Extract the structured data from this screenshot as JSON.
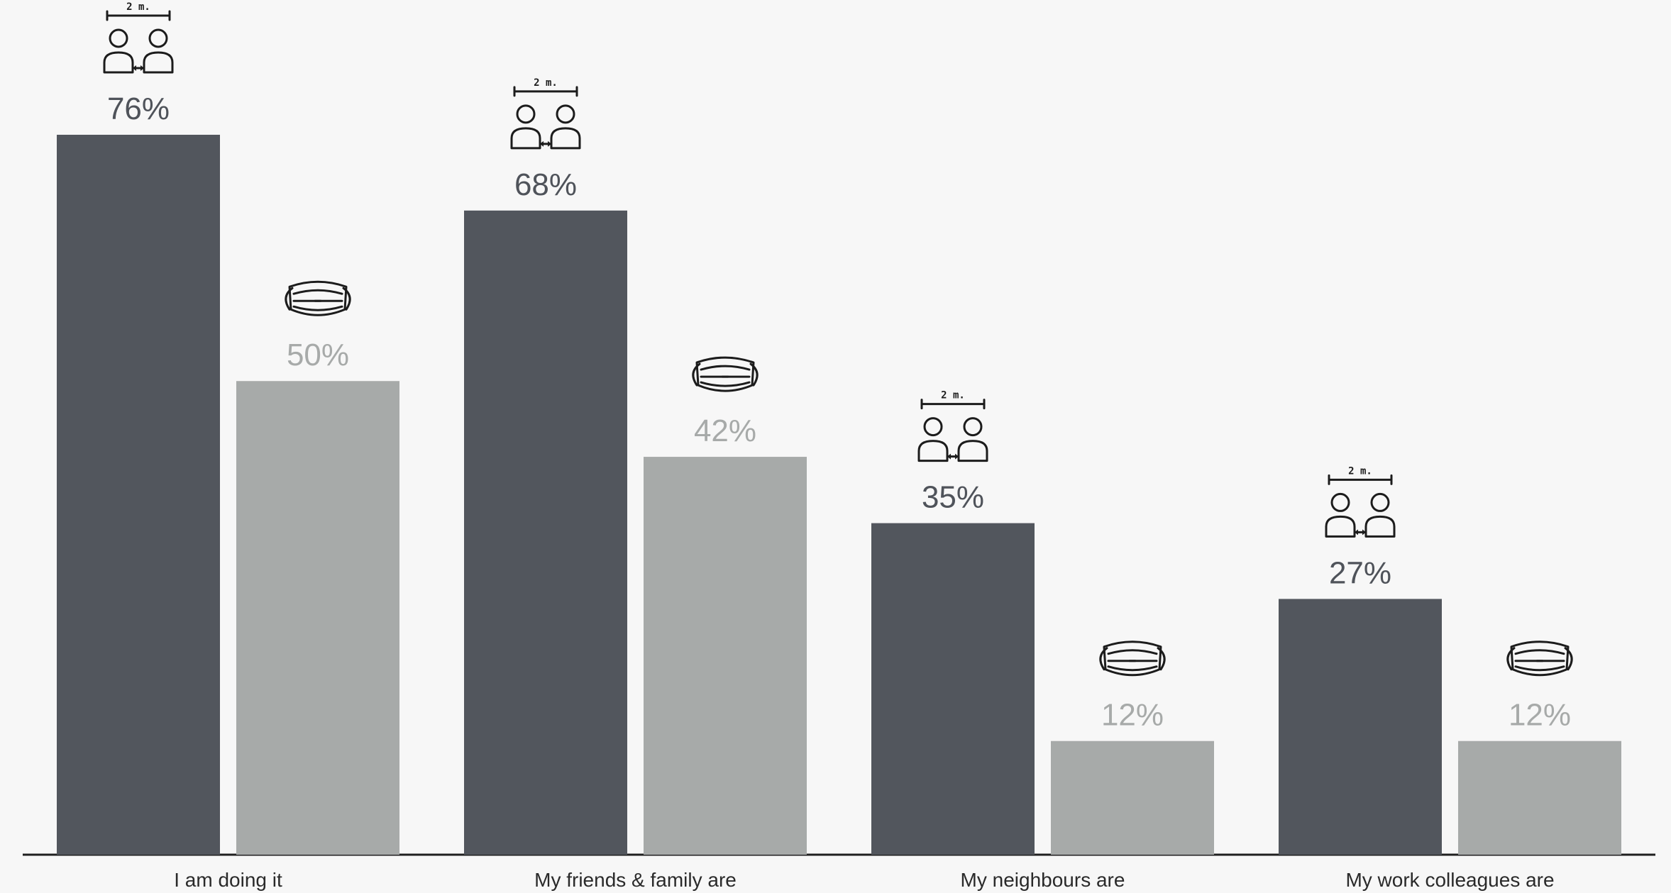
{
  "chart_data": {
    "type": "bar",
    "categories": [
      "I am doing it",
      "My friends & family are",
      "My neighbours are",
      "My work colleagues are"
    ],
    "series": [
      {
        "values": [
          76,
          68,
          35,
          27
        ],
        "color": "#52565d",
        "label_color": "#4f535a",
        "icon": "social-distance-icon",
        "icon_text": "2 m."
      },
      {
        "values": [
          50,
          42,
          12,
          12
        ],
        "color": "#a7aaa9",
        "label_color": "#a7aaa9",
        "icon": "face-mask-icon"
      }
    ],
    "value_suffix": "%",
    "ylim": [
      0,
      76
    ],
    "grid": false,
    "legend": "none"
  }
}
